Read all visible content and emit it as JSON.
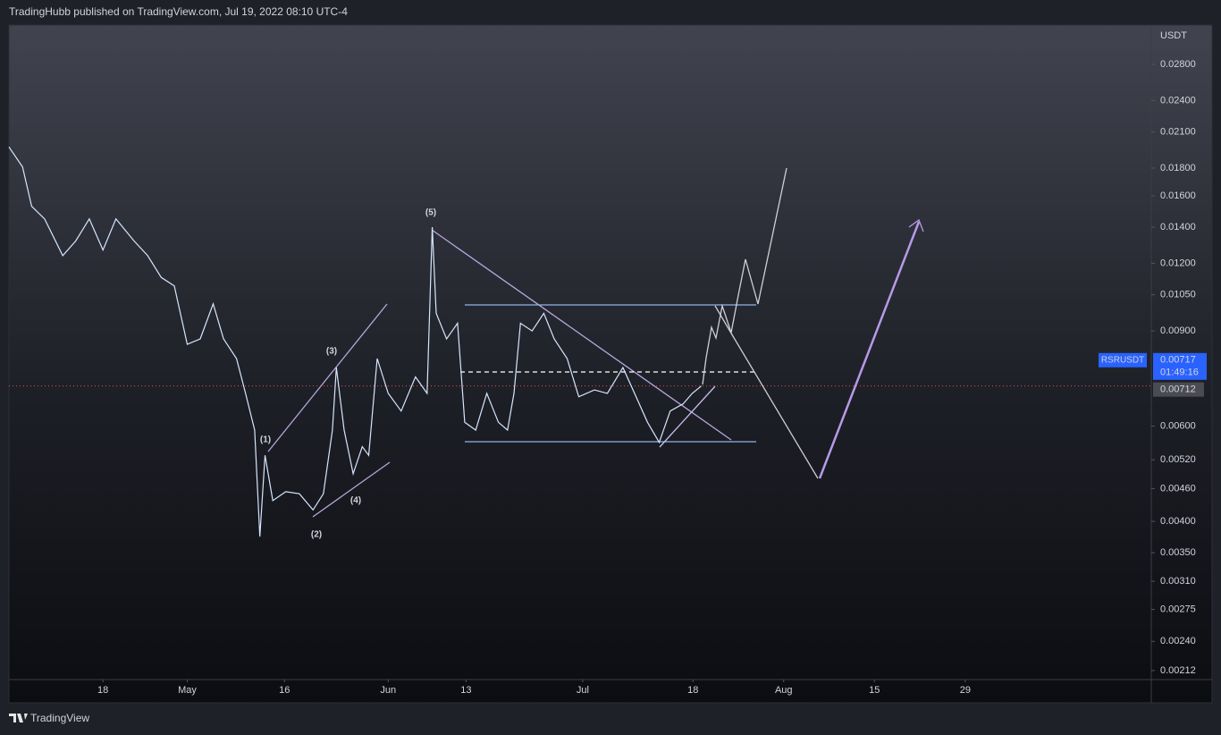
{
  "header": "TradingHubb published on TradingView.com, Jul 19, 2022 08:10 UTC-4",
  "footer": "TradingView",
  "chart_data": {
    "type": "line",
    "log_scale": true,
    "y_unit": "USDT",
    "series": [
      {
        "name": "RSRUSDT",
        "color": "#d6e6ff",
        "values": [
          0.0197,
          0.0181,
          0.0153,
          0.0145,
          0.0124,
          0.0132,
          0.0145,
          0.0127,
          0.0145,
          0.0132,
          0.0124,
          0.0113,
          0.0109,
          0.0085,
          0.0087,
          0.0101,
          0.0087,
          0.008,
          0.0069,
          0.0059,
          0.00375,
          0.0053,
          0.00437,
          0.00454,
          0.0045,
          0.0042,
          0.0045,
          0.0059,
          0.0077,
          0.0059,
          0.0049,
          0.0055,
          0.0053,
          0.008,
          0.0069,
          0.0064,
          0.0074,
          0.0069,
          0.014,
          0.0097,
          0.0087,
          0.0093,
          0.0061,
          0.0059,
          0.0069,
          0.0061,
          0.0059,
          0.0069,
          0.0093,
          0.009,
          0.0097,
          0.0087,
          0.008,
          0.0068,
          0.007,
          0.0069,
          0.0077,
          0.0069,
          0.0061,
          0.0056,
          0.0064,
          0.0066,
          0.0069,
          0.00712
        ]
      }
    ],
    "x": [
      93.5,
      95.6,
      97,
      99,
      101.8,
      103.8,
      105.9,
      108,
      110,
      112.8,
      114.9,
      117,
      119,
      121,
      123,
      125,
      126.6,
      128.6,
      130,
      131.4,
      132.2,
      133,
      134.2,
      136.2,
      138.3,
      140.4,
      142,
      143.4,
      144,
      145.2,
      146.6,
      148,
      149,
      150.3,
      152,
      154,
      156.2,
      158,
      158.8,
      159.4,
      161,
      162.7,
      163.8,
      165.5,
      167.2,
      169,
      170.4,
      171.4,
      172.4,
      174.2,
      176,
      177.6,
      179.6,
      181.4,
      183.8,
      185.8,
      188.2,
      190,
      192,
      193.8,
      195.5,
      197.5,
      198.9,
      200.3
    ],
    "xlim": [
      93.5,
      269.7
    ],
    "xticks": [
      {
        "value": 108,
        "label": "18"
      },
      {
        "value": 121,
        "label": "May"
      },
      {
        "value": 136,
        "label": "16"
      },
      {
        "value": 152,
        "label": "Jun"
      },
      {
        "value": 164,
        "label": "13"
      },
      {
        "value": 182,
        "label": "Jul"
      },
      {
        "value": 199,
        "label": "18"
      },
      {
        "value": 213,
        "label": "Aug"
      },
      {
        "value": 227,
        "label": "15"
      },
      {
        "value": 241,
        "label": "29"
      }
    ],
    "ylim": [
      0.00204,
      0.0331
    ],
    "yticks": [
      {
        "value": 0.028,
        "label": "0.02800"
      },
      {
        "value": 0.024,
        "label": "0.02400"
      },
      {
        "value": 0.021,
        "label": "0.02100"
      },
      {
        "value": 0.018,
        "label": "0.01800"
      },
      {
        "value": 0.016,
        "label": "0.01600"
      },
      {
        "value": 0.014,
        "label": "0.01400"
      },
      {
        "value": 0.012,
        "label": "0.01200"
      },
      {
        "value": 0.0105,
        "label": "0.01050"
      },
      {
        "value": 0.009,
        "label": "0.00900"
      },
      {
        "value": 0.006,
        "label": "0.00600"
      },
      {
        "value": 0.0052,
        "label": "0.00520"
      },
      {
        "value": 0.0046,
        "label": "0.00460"
      },
      {
        "value": 0.004,
        "label": "0.00400"
      },
      {
        "value": 0.0035,
        "label": "0.00350"
      },
      {
        "value": 0.0031,
        "label": "0.00310"
      },
      {
        "value": 0.00275,
        "label": "0.00275"
      },
      {
        "value": 0.0024,
        "label": "0.00240"
      },
      {
        "value": 0.00212,
        "label": "0.00212"
      }
    ],
    "last_price": 0.00717,
    "countdown": "01:49:16",
    "price_line": 0.00712,
    "price_line_color": "#e0534f",
    "annotations": [
      "(1)",
      "(2)",
      "(3)",
      "(4)",
      "(5)"
    ]
  }
}
